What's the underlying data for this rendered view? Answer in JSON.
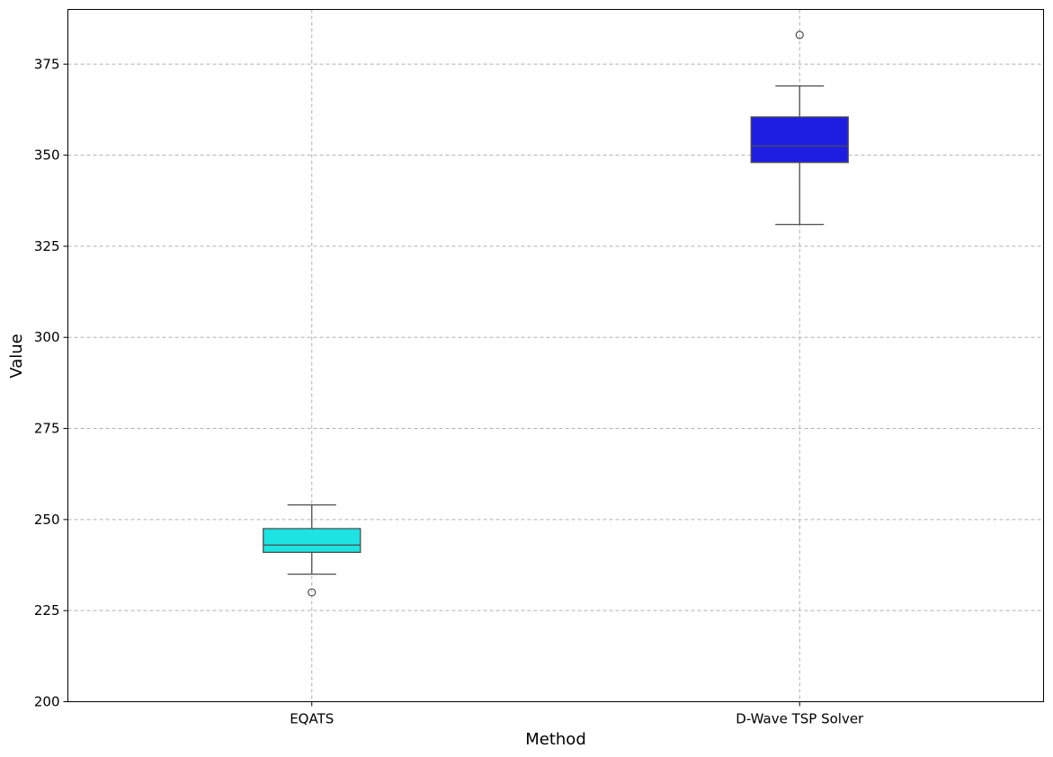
{
  "chart_data": {
    "type": "box",
    "title": "",
    "xlabel": "Method",
    "ylabel": "Value",
    "ylim": [
      200,
      390
    ],
    "yticks": [
      "200",
      "225",
      "250",
      "275",
      "300",
      "325",
      "350",
      "375"
    ],
    "grid": true,
    "categories": [
      "EQATS",
      "D-Wave TSP Solver"
    ],
    "boxes": [
      {
        "category": "EQATS",
        "whisker_low": 235,
        "q1": 241,
        "median": 243,
        "q3": 247.5,
        "whisker_high": 254,
        "outliers": [
          230
        ],
        "color": "#1ee3e3"
      },
      {
        "category": "D-Wave TSP Solver",
        "whisker_low": 331,
        "q1": 348,
        "median": 352.5,
        "q3": 360.5,
        "whisker_high": 369,
        "outliers": [
          383
        ],
        "color": "#1e1ee3"
      }
    ]
  }
}
